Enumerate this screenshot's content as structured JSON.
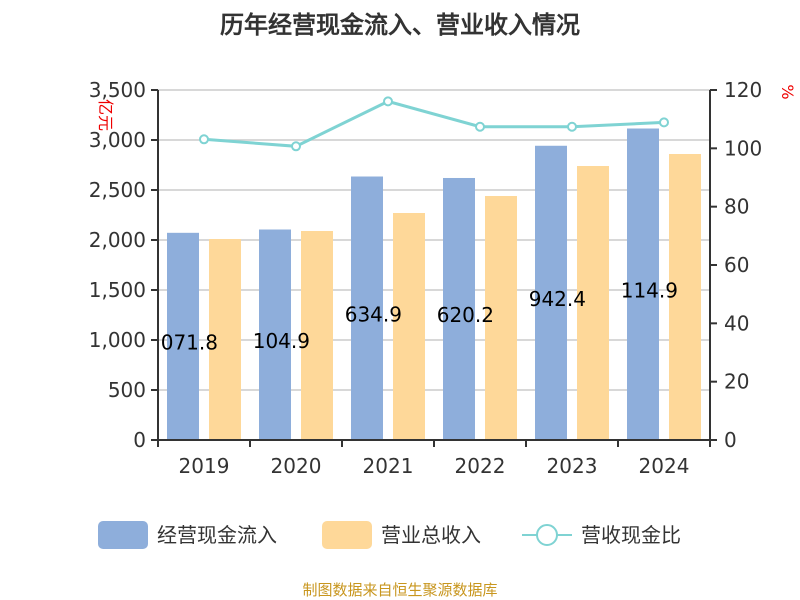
{
  "chart_data": {
    "type": "bar",
    "title": "历年经营现金流入、营业收入情况",
    "categories": [
      "2019",
      "2020",
      "2021",
      "2022",
      "2023",
      "2024"
    ],
    "series": [
      {
        "name": "经营现金流入",
        "type": "bar",
        "axis": "left",
        "color": "#8eaedb",
        "values": [
          2071.8,
          2104.9,
          2634.9,
          2620.2,
          2942.4,
          3114.9
        ],
        "labels": [
          "2071.8",
          "2104.9",
          "2634.9",
          "2620.2",
          "2942.4",
          "3114.9"
        ]
      },
      {
        "name": "营业总收入",
        "type": "bar",
        "axis": "left",
        "color": "#fed899",
        "values": [
          2010,
          2090,
          2270,
          2440,
          2740,
          2860
        ]
      },
      {
        "name": "营收现金比",
        "type": "line",
        "axis": "right",
        "color": "#7fd3d3",
        "values": [
          103.1,
          100.7,
          116.1,
          107.4,
          107.4,
          108.9
        ]
      }
    ],
    "yleft": {
      "label": "亿元",
      "ylim": [
        0,
        3500
      ],
      "ticks": [
        "0",
        "500",
        "1,000",
        "1,500",
        "2,000",
        "2,500",
        "3,000",
        "3,500"
      ]
    },
    "yright": {
      "label": "%",
      "ylim": [
        0,
        120
      ],
      "ticks": [
        "0",
        "20",
        "40",
        "60",
        "80",
        "100",
        "120"
      ]
    },
    "grid": true,
    "legend": "bottom",
    "source": "制图数据来自恒生聚源数据库"
  }
}
